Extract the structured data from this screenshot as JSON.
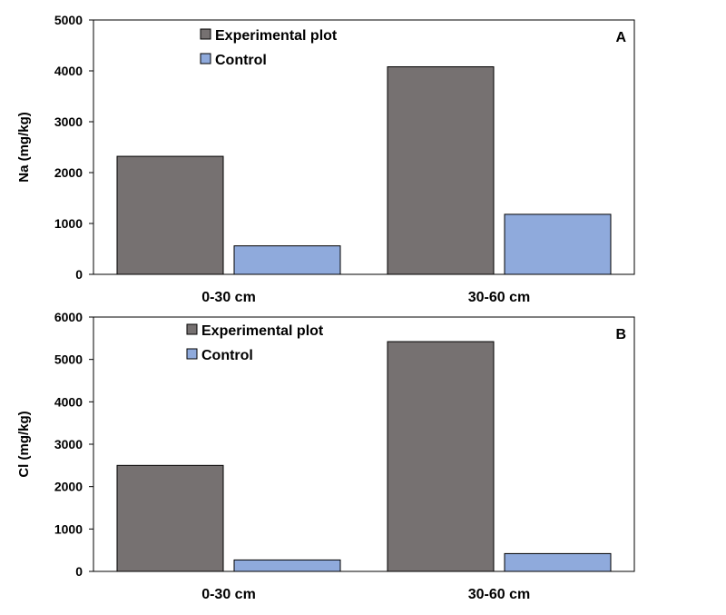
{
  "colors": {
    "experimental": "#767171",
    "control": "#8faadc",
    "frame": "#000000"
  },
  "chart_data": [
    {
      "type": "bar",
      "panel_label": "A",
      "categories": [
        "0-30 cm",
        "30-60 cm"
      ],
      "series": [
        {
          "name": "Experimental plot",
          "values": [
            2320,
            4080
          ]
        },
        {
          "name": "Control",
          "values": [
            560,
            1180
          ]
        }
      ],
      "xlabel": "",
      "ylabel": "Na (mg/kg)",
      "ylim": [
        0,
        5000
      ],
      "yticks": [
        0,
        1000,
        2000,
        3000,
        4000,
        5000
      ],
      "legend": "top-center",
      "grid": false
    },
    {
      "type": "bar",
      "panel_label": "B",
      "categories": [
        "0-30 cm",
        "30-60 cm"
      ],
      "series": [
        {
          "name": "Experimental plot",
          "values": [
            2500,
            5420
          ]
        },
        {
          "name": "Control",
          "values": [
            270,
            420
          ]
        }
      ],
      "xlabel": "",
      "ylabel": "Cl (mg/kg)",
      "ylim": [
        0,
        6000
      ],
      "yticks": [
        0,
        1000,
        2000,
        3000,
        4000,
        5000,
        6000
      ],
      "legend": "top-center",
      "grid": false
    }
  ]
}
